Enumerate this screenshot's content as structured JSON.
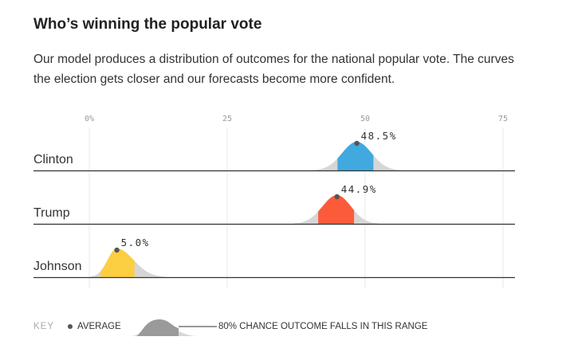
{
  "title": "Who’s winning the popular vote",
  "description": [
    "Our model produces a distribution of outcomes for the national popular vote. The curves",
    "the election gets closer and our forecasts become more confident."
  ],
  "chart_data": {
    "type": "area",
    "x_axis": {
      "ticks": [
        0,
        25,
        50,
        75
      ],
      "tick_labels": [
        "0%",
        "25",
        "50",
        "75"
      ],
      "range": [
        0,
        77
      ],
      "grid": true
    },
    "series": [
      {
        "name": "Clinton",
        "average": 48.5,
        "label": "48.5%",
        "range80": [
          45.0,
          51.5
        ],
        "spread": [
          40.5,
          56.5
        ],
        "color": "#3fa9e0"
      },
      {
        "name": "Trump",
        "average": 44.9,
        "label": "44.9%",
        "range80": [
          41.5,
          48.0
        ],
        "spread": [
          37.0,
          52.5
        ],
        "color": "#fb5b3b"
      },
      {
        "name": "Johnson",
        "average": 5.0,
        "label": "5.0%",
        "range80": [
          2.0,
          8.2
        ],
        "spread": [
          0.0,
          14.0
        ],
        "color": "#fcce42"
      }
    ]
  },
  "key": {
    "title": "KEY",
    "average_label": "AVERAGE",
    "range_label": "80% CHANCE OUTCOME FALLS IN THIS RANGE"
  },
  "colors": {
    "distribution_gray": "#d6d6d6",
    "key_range_gray": "#9a9a9a",
    "baseline": "#333333",
    "grid": "#e8e8e8"
  }
}
